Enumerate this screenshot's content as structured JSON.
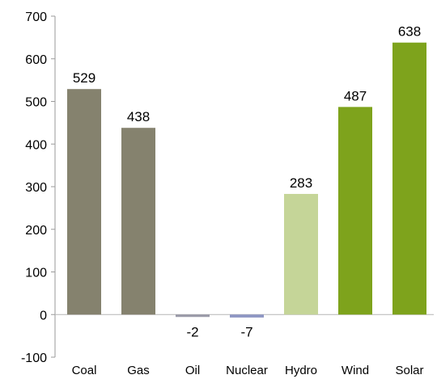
{
  "chart_data": {
    "type": "bar",
    "categories": [
      "Coal",
      "Gas",
      "Oil",
      "Nuclear",
      "Hydro",
      "Wind",
      "Solar"
    ],
    "values": [
      529,
      438,
      -2,
      -7,
      283,
      487,
      638
    ],
    "data_labels": [
      "529",
      "438",
      "-2",
      "-7",
      "283",
      "487",
      "638"
    ],
    "colors": [
      "#85826e",
      "#85826e",
      "#9a9aa8",
      "#8f97c4",
      "#c5d598",
      "#7ea31c",
      "#7ea31c"
    ],
    "ylim": [
      -100,
      700
    ],
    "yticks": [
      -100,
      0,
      100,
      200,
      300,
      400,
      500,
      600,
      700
    ],
    "ytick_labels": [
      "-100",
      "0",
      "100",
      "200",
      "300",
      "400",
      "500",
      "600",
      "700"
    ],
    "grid": false,
    "legend": "none"
  }
}
